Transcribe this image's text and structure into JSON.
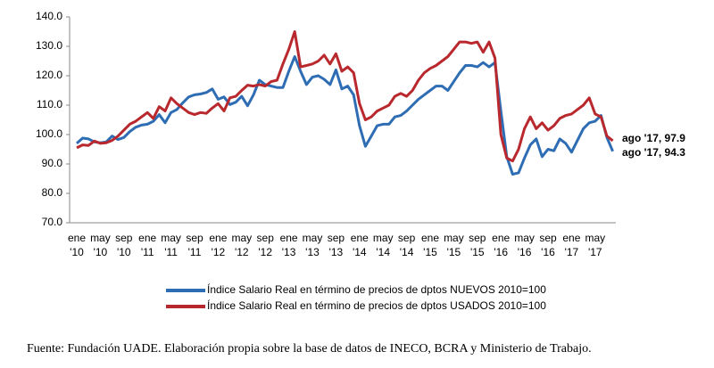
{
  "chart_data": {
    "type": "line",
    "categories": [
      [
        "ene",
        "'10"
      ],
      null,
      null,
      null,
      [
        "may",
        "'10"
      ],
      null,
      null,
      null,
      [
        "sep",
        "'10"
      ],
      null,
      null,
      null,
      [
        "ene",
        "'11"
      ],
      null,
      null,
      null,
      [
        "may",
        "'11"
      ],
      null,
      null,
      null,
      [
        "sep",
        "'11"
      ],
      null,
      null,
      null,
      [
        "ene",
        "'12"
      ],
      null,
      null,
      null,
      [
        "may",
        "'12"
      ],
      null,
      null,
      null,
      [
        "sep",
        "'12"
      ],
      null,
      null,
      null,
      [
        "ene",
        "'13"
      ],
      null,
      null,
      null,
      [
        "may",
        "'13"
      ],
      null,
      null,
      null,
      [
        "sep",
        "'13"
      ],
      null,
      null,
      null,
      [
        "ene",
        "'14"
      ],
      null,
      null,
      null,
      [
        "may",
        "'14"
      ],
      null,
      null,
      null,
      [
        "sep",
        "'14"
      ],
      null,
      null,
      null,
      [
        "ene",
        "'15"
      ],
      null,
      null,
      null,
      [
        "may",
        "'15"
      ],
      null,
      null,
      null,
      [
        "sep",
        "'15"
      ],
      null,
      null,
      null,
      [
        "ene",
        "'16"
      ],
      null,
      null,
      null,
      [
        "may",
        "'16"
      ],
      null,
      null,
      null,
      [
        "sep",
        "'16"
      ],
      null,
      null,
      null,
      [
        "ene",
        "'17"
      ],
      null,
      null,
      null,
      [
        "may",
        "'17"
      ],
      null,
      null,
      null
    ],
    "series": [
      {
        "name": "Índice Salario Real en término de precios de dptos NUEVOS 2010=100",
        "color": "#2e6db4",
        "values": [
          97.0,
          98.8,
          98.5,
          97.5,
          97.2,
          97.5,
          99.5,
          98.3,
          99.0,
          101,
          102.5,
          103.2,
          103.5,
          104.5,
          106.8,
          104.0,
          107.5,
          108.5,
          110.8,
          112.8,
          113.5,
          113.8,
          114.3,
          115.5,
          112.0,
          112.8,
          110.2,
          111.0,
          113.0,
          109.8,
          113.5,
          118.5,
          117.0,
          116.5,
          116.0,
          116.0,
          121.5,
          126.5,
          121.5,
          117.0,
          119.5,
          120.0,
          118.8,
          117.0,
          122.0,
          115.5,
          116.5,
          113.5,
          103.0,
          96.0,
          99.5,
          103.0,
          103.5,
          103.5,
          106.0,
          106.5,
          108.0,
          110.0,
          112.0,
          113.5,
          115.0,
          116.5,
          116.5,
          115.0,
          118.0,
          121.0,
          123.5,
          123.5,
          123.0,
          124.5,
          123.0,
          124.5,
          108.0,
          92.5,
          86.5,
          87.0,
          92.0,
          96.5,
          98.5,
          92.5,
          95.0,
          94.5,
          98.5,
          97.0,
          94.0,
          98.0,
          102.0,
          104.0,
          104.5,
          106.5,
          99.0,
          94.3
        ]
      },
      {
        "name": "Índice Salario Real en término de precios de dptos USADOS 2010=100",
        "color": "#b8282d",
        "values": [
          95.5,
          96.5,
          96.3,
          97.8,
          97.0,
          97.2,
          98.0,
          99.5,
          101.5,
          103.5,
          104.5,
          106.0,
          107.5,
          105.5,
          109.5,
          108.0,
          112.5,
          110.5,
          109.0,
          107.5,
          106.8,
          107.5,
          107.2,
          109.0,
          110.5,
          108.0,
          112.5,
          113.0,
          115.0,
          116.8,
          116.5,
          117.0,
          116.5,
          118.0,
          118.5,
          124.0,
          129.0,
          135.0,
          123.0,
          123.5,
          124.0,
          125.0,
          127.0,
          124.0,
          127.5,
          121.5,
          123.0,
          121.0,
          110.5,
          105.0,
          106.0,
          108.0,
          109.0,
          110.0,
          113.0,
          114.0,
          113.0,
          115.0,
          118.5,
          121.0,
          122.5,
          123.5,
          125.0,
          126.5,
          129.0,
          131.5,
          131.5,
          131.0,
          131.5,
          128.0,
          131.5,
          126.0,
          100.0,
          92.0,
          91.0,
          95.0,
          102.0,
          106.0,
          102.0,
          104.0,
          101.5,
          103.0,
          105.5,
          106.5,
          107.0,
          108.5,
          110.0,
          112.5,
          107.0,
          106.0,
          99.5,
          97.9
        ]
      }
    ],
    "annotations": [
      "ago '17, 94.3",
      "ago '17, 97.9"
    ],
    "ylim": [
      70,
      140
    ],
    "yticks": [
      {
        "value": 70,
        "label": "70.0"
      },
      {
        "value": 80,
        "label": "80.0"
      },
      {
        "value": 90,
        "label": "90.0"
      },
      {
        "value": 100,
        "label": "100.0"
      },
      {
        "value": 110,
        "label": "110.0"
      },
      {
        "value": 120,
        "label": "120.0"
      },
      {
        "value": 130,
        "label": "130.0"
      },
      {
        "value": 140,
        "label": "140.0"
      }
    ],
    "source": "Fuente: Fundación UADE. Elaboración propia sobre la base de datos de INECO, BCRA y Ministerio de Trabajo."
  }
}
